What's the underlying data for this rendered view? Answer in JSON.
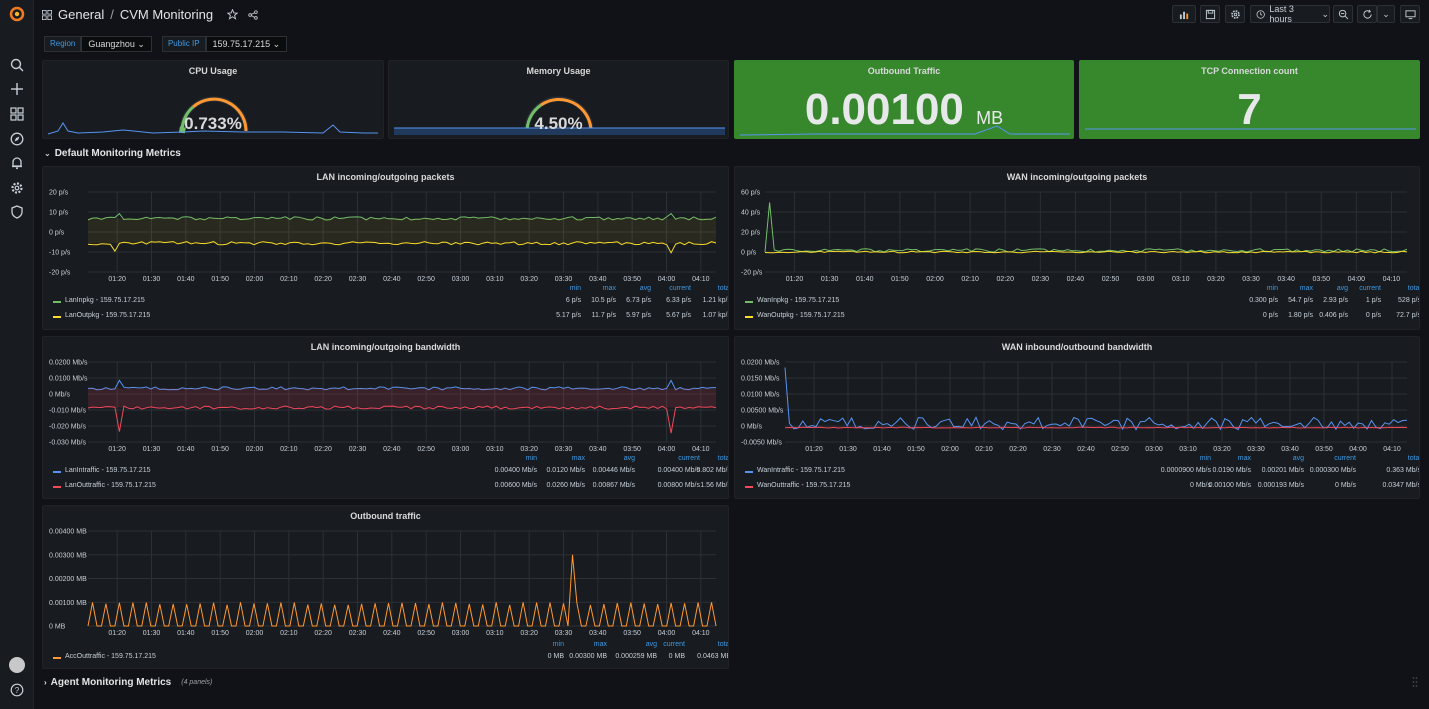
{
  "breadcrumb": {
    "folder": "General",
    "separator": "/",
    "dashboard": "CVM Monitoring"
  },
  "toolbar": {
    "time_range": "Last 3 hours"
  },
  "variables": [
    {
      "label": "Region",
      "value": "Guangzhou"
    },
    {
      "label": "Public IP",
      "value": "159.75.17.215"
    }
  ],
  "stats": {
    "cpu": {
      "title": "CPU Usage",
      "value": "0.733%"
    },
    "memory": {
      "title": "Memory Usage",
      "value": "4.50%"
    },
    "outbound": {
      "title": "Outbound Traffic",
      "value": "0.00100",
      "unit": "MB"
    },
    "tcp": {
      "title": "TCP Connection count",
      "value": "7"
    }
  },
  "rows": {
    "default": {
      "title": "Default Monitoring Metrics"
    },
    "agent": {
      "title": "Agent Monitoring Metrics",
      "sub": "(4 panels)"
    }
  },
  "legend_headers": {
    "min": "min",
    "max": "max",
    "avg": "avg",
    "current": "current",
    "total": "total"
  },
  "time_ticks": [
    "01:20",
    "01:30",
    "01:40",
    "01:50",
    "02:00",
    "02:10",
    "02:20",
    "02:30",
    "02:40",
    "02:50",
    "03:00",
    "03:10",
    "03:20",
    "03:30",
    "03:40",
    "03:50",
    "04:00",
    "04:10"
  ],
  "colors": {
    "green": "#73bf69",
    "yellow": "#fade2a",
    "blue": "#5794f2",
    "red": "#f2495c",
    "orange": "#ff9830",
    "stat_green": "#37872d"
  },
  "graphs": {
    "lan_pkg": {
      "title": "LAN incoming/outgoing packets",
      "y_ticks": [
        "20 p/s",
        "10 p/s",
        "0 p/s",
        "-10 p/s",
        "-20 p/s"
      ],
      "series": [
        {
          "name": "LanInpkg - 159.75.17.215",
          "min": "6 p/s",
          "max": "10.5 p/s",
          "avg": "6.73 p/s",
          "current": "6.33 p/s",
          "total": "1.21 kp/s"
        },
        {
          "name": "LanOutpkg - 159.75.17.215",
          "min": "5.17 p/s",
          "max": "11.7 p/s",
          "avg": "5.97 p/s",
          "current": "5.67 p/s",
          "total": "1.07 kp/s"
        }
      ]
    },
    "wan_pkg": {
      "title": "WAN incoming/outgoing packets",
      "y_ticks": [
        "60 p/s",
        "40 p/s",
        "20 p/s",
        "0 p/s",
        "-20 p/s"
      ],
      "series": [
        {
          "name": "WanInpkg - 159.75.17.215",
          "min": "0.300 p/s",
          "max": "54.7 p/s",
          "avg": "2.93 p/s",
          "current": "1 p/s",
          "total": "528 p/s"
        },
        {
          "name": "WanOutpkg - 159.75.17.215",
          "min": "0 p/s",
          "max": "1.80 p/s",
          "avg": "0.406 p/s",
          "current": "0 p/s",
          "total": "72.7 p/s"
        }
      ]
    },
    "lan_bw": {
      "title": "LAN incoming/outgoing bandwidth",
      "y_ticks": [
        "0.0200 Mb/s",
        "0.0100 Mb/s",
        "0 Mb/s",
        "-0.010 Mb/s",
        "-0.020 Mb/s",
        "-0.030 Mb/s"
      ],
      "series": [
        {
          "name": "LanIntraffic - 159.75.17.215",
          "min": "0.00400 Mb/s",
          "max": "0.0120 Mb/s",
          "avg": "0.00446 Mb/s",
          "current": "0.00400 Mb/s",
          "total": "0.802 Mb/s"
        },
        {
          "name": "LanOuttraffic - 159.75.17.215",
          "min": "0.00600 Mb/s",
          "max": "0.0260 Mb/s",
          "avg": "0.00867 Mb/s",
          "current": "0.00800 Mb/s",
          "total": "1.56 Mb/s"
        }
      ]
    },
    "wan_bw": {
      "title": "WAN inbound/outbound bandwidth",
      "y_ticks": [
        "0.0200 Mb/s",
        "0.0150 Mb/s",
        "0.0100 Mb/s",
        "0.00500 Mb/s",
        "0 Mb/s",
        "-0.0050 Mb/s"
      ],
      "series": [
        {
          "name": "WanIntraffic - 159.75.17.215",
          "min": "0.0000900 Mb/s",
          "max": "0.0190 Mb/s",
          "avg": "0.00201 Mb/s",
          "current": "0.000300 Mb/s",
          "total": "0.363 Mb/s"
        },
        {
          "name": "WanOuttraffic - 159.75.17.215",
          "min": "0 Mb/s",
          "max": "0.00100 Mb/s",
          "avg": "0.000193 Mb/s",
          "current": "0 Mb/s",
          "total": "0.0347 Mb/s"
        }
      ]
    },
    "out_traffic": {
      "title": "Outbound traffic",
      "y_ticks": [
        "0.00400 MB",
        "0.00300 MB",
        "0.00200 MB",
        "0.00100 MB",
        "0 MB"
      ],
      "series": [
        {
          "name": "AccOuttraffic - 159.75.17.215",
          "min": "0 MB",
          "max": "0.00300 MB",
          "avg": "0.000259 MB",
          "current": "0 MB",
          "total": "0.0463 MB"
        }
      ]
    }
  }
}
